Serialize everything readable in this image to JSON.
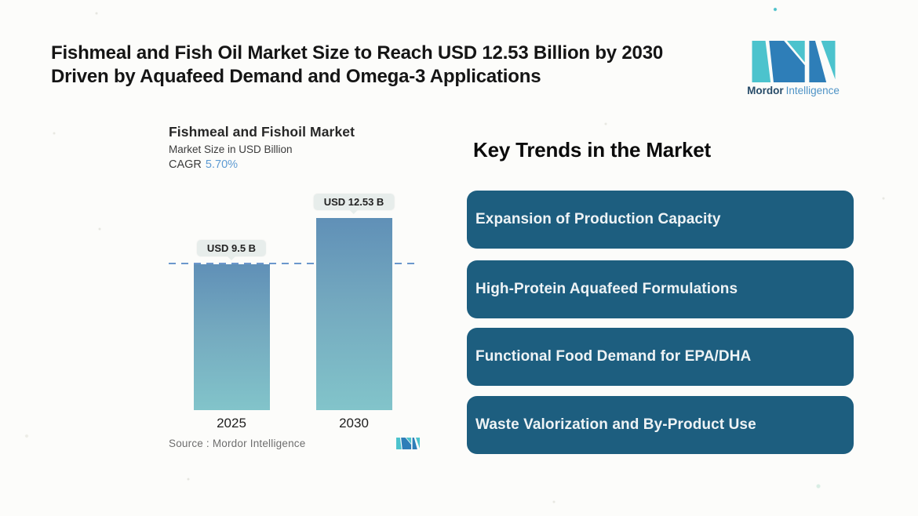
{
  "header": {
    "title_line1": "Fishmeal and Fish Oil Market Size to Reach USD 12.53 Billion by 2030",
    "title_line2": "Driven by Aquafeed Demand and Omega-3 Applications"
  },
  "brand": {
    "name_bold": "Mordor",
    "name_light": "Intelligence",
    "teal": "#4cc3cd",
    "blue": "#2e7eb8"
  },
  "chart": {
    "title": "Fishmeal and Fishoil Market",
    "subtitle": "Market Size in USD Billion",
    "cagr_label": "CAGR",
    "cagr_value": "5.70%",
    "source_label": "Source :  Mordor Intelligence"
  },
  "chart_data": {
    "type": "bar",
    "title": "Fishmeal and Fishoil Market",
    "ylabel": "Market Size in USD Billion",
    "categories": [
      "2025",
      "2030"
    ],
    "values": [
      9.5,
      12.53
    ],
    "value_labels": [
      "USD 9.5 B",
      "USD 12.53 B"
    ],
    "cagr": "5.70%",
    "reference_line": 9.5,
    "grid": false,
    "legend": false,
    "bar_color_top": "#6090b7",
    "bar_color_bottom": "#82c4ca",
    "reference_line_color": "#6b97cc"
  },
  "trends": {
    "heading": "Key Trends in the Market",
    "box_color": "#1d5e7f",
    "items": [
      {
        "label": "Expansion of Production Capacity"
      },
      {
        "label": "High-Protein Aquafeed Formulations"
      },
      {
        "label": "Functional Food Demand for EPA/DHA"
      },
      {
        "label": "Waste Valorization and By-Product Use"
      }
    ]
  }
}
